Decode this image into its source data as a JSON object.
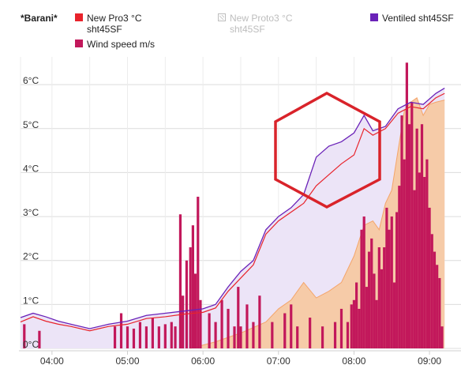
{
  "legend": {
    "title": "*Barani*",
    "items": [
      {
        "label": "New Pro3  °C\nsht45SF",
        "color": "#e8232b",
        "enabled": true
      },
      {
        "label": "New Proto3  °C\nsht45SF",
        "color": "#cccccc",
        "enabled": false
      },
      {
        "label": "Ventiled sht45SF",
        "color": "#6a22b8",
        "enabled": true
      },
      {
        "label": "Wind speed  m/s",
        "color": "#c2185b",
        "enabled": true
      }
    ]
  },
  "colors": {
    "pro3": "#e8232b",
    "ventiled": "#6a22b8",
    "ventiled_fill": "#ece4f7",
    "orange": "#f4a56a",
    "orange_fill": "#f7c9a3",
    "wind": "#c2185b",
    "grid": "#dcdcdc",
    "annotation": "#d9232a"
  },
  "chart_data": {
    "type": "line",
    "x_unit": "time",
    "xlim": [
      "03:35",
      "09:15"
    ],
    "ylim": [
      0,
      6.2
    ],
    "y_ticks": [
      0,
      1,
      2,
      3,
      4,
      5,
      6
    ],
    "y_tick_labels": [
      "0°C",
      "1°C",
      "2°C",
      "3°C",
      "4°C",
      "5°C",
      "6°C"
    ],
    "x_ticks": [
      "04:00",
      "05:00",
      "06:00",
      "07:00",
      "08:00",
      "09:00"
    ],
    "grid": true,
    "series": [
      {
        "name": "Ventiled sht45SF",
        "kind": "area",
        "points": [
          [
            "03:35",
            0.7
          ],
          [
            "03:45",
            0.8
          ],
          [
            "03:55",
            0.72
          ],
          [
            "04:05",
            0.62
          ],
          [
            "04:15",
            0.55
          ],
          [
            "04:30",
            0.45
          ],
          [
            "04:45",
            0.55
          ],
          [
            "05:00",
            0.62
          ],
          [
            "05:15",
            0.75
          ],
          [
            "05:30",
            0.8
          ],
          [
            "05:45",
            0.85
          ],
          [
            "06:00",
            0.9
          ],
          [
            "06:10",
            1.0
          ],
          [
            "06:20",
            1.4
          ],
          [
            "06:30",
            1.75
          ],
          [
            "06:40",
            2.0
          ],
          [
            "06:50",
            2.7
          ],
          [
            "07:00",
            3.0
          ],
          [
            "07:10",
            3.2
          ],
          [
            "07:20",
            3.5
          ],
          [
            "07:30",
            4.35
          ],
          [
            "07:40",
            4.6
          ],
          [
            "07:50",
            4.7
          ],
          [
            "08:00",
            4.9
          ],
          [
            "08:08",
            5.3
          ],
          [
            "08:15",
            4.95
          ],
          [
            "08:25",
            5.05
          ],
          [
            "08:35",
            5.45
          ],
          [
            "08:45",
            5.6
          ],
          [
            "08:55",
            5.55
          ],
          [
            "09:05",
            5.8
          ],
          [
            "09:12",
            5.92
          ]
        ]
      },
      {
        "name": "New Pro3 °C sht45SF",
        "kind": "line",
        "points": [
          [
            "03:35",
            0.6
          ],
          [
            "03:45",
            0.72
          ],
          [
            "03:55",
            0.62
          ],
          [
            "04:05",
            0.55
          ],
          [
            "04:15",
            0.5
          ],
          [
            "04:30",
            0.4
          ],
          [
            "04:45",
            0.5
          ],
          [
            "05:00",
            0.55
          ],
          [
            "05:15",
            0.68
          ],
          [
            "05:30",
            0.72
          ],
          [
            "05:45",
            0.78
          ],
          [
            "06:00",
            0.82
          ],
          [
            "06:10",
            0.92
          ],
          [
            "06:20",
            1.3
          ],
          [
            "06:30",
            1.6
          ],
          [
            "06:40",
            1.9
          ],
          [
            "06:50",
            2.6
          ],
          [
            "07:00",
            2.9
          ],
          [
            "07:10",
            3.1
          ],
          [
            "07:20",
            3.3
          ],
          [
            "07:30",
            3.7
          ],
          [
            "07:40",
            3.95
          ],
          [
            "07:50",
            4.2
          ],
          [
            "08:00",
            4.4
          ],
          [
            "08:08",
            5.0
          ],
          [
            "08:15",
            4.85
          ],
          [
            "08:25",
            5.0
          ],
          [
            "08:35",
            5.35
          ],
          [
            "08:45",
            5.5
          ],
          [
            "08:55",
            5.45
          ],
          [
            "09:05",
            5.7
          ],
          [
            "09:12",
            5.8
          ]
        ]
      },
      {
        "name": "",
        "kind": "area",
        "points": [
          [
            "05:50",
            0.0
          ],
          [
            "06:10",
            0.15
          ],
          [
            "06:30",
            0.35
          ],
          [
            "06:50",
            0.6
          ],
          [
            "07:00",
            0.9
          ],
          [
            "07:10",
            1.1
          ],
          [
            "07:20",
            1.5
          ],
          [
            "07:30",
            1.15
          ],
          [
            "07:40",
            1.3
          ],
          [
            "07:50",
            1.5
          ],
          [
            "08:00",
            2.1
          ],
          [
            "08:08",
            2.8
          ],
          [
            "08:15",
            2.9
          ],
          [
            "08:20",
            2.7
          ],
          [
            "08:25",
            3.3
          ],
          [
            "08:30",
            3.6
          ],
          [
            "08:35",
            4.5
          ],
          [
            "08:40",
            5.4
          ],
          [
            "08:45",
            5.6
          ],
          [
            "08:50",
            5.7
          ],
          [
            "08:55",
            5.3
          ],
          [
            "09:00",
            5.55
          ],
          [
            "09:05",
            5.6
          ],
          [
            "09:12",
            5.65
          ]
        ]
      },
      {
        "name": "Wind speed m/s",
        "kind": "bars",
        "points": [
          [
            "03:38",
            0.55
          ],
          [
            "03:50",
            0.4
          ],
          [
            "04:50",
            0.5
          ],
          [
            "04:55",
            0.8
          ],
          [
            "05:00",
            0.5
          ],
          [
            "05:05",
            0.45
          ],
          [
            "05:10",
            0.6
          ],
          [
            "05:15",
            0.5
          ],
          [
            "05:20",
            0.7
          ],
          [
            "05:25",
            0.5
          ],
          [
            "05:30",
            0.55
          ],
          [
            "05:35",
            0.6
          ],
          [
            "05:38",
            0.5
          ],
          [
            "05:42",
            3.05
          ],
          [
            "05:44",
            1.2
          ],
          [
            "05:47",
            2.0
          ],
          [
            "05:50",
            2.3
          ],
          [
            "05:52",
            2.8
          ],
          [
            "05:54",
            1.7
          ],
          [
            "05:56",
            3.45
          ],
          [
            "05:58",
            1.1
          ],
          [
            "06:05",
            0.8
          ],
          [
            "06:10",
            0.6
          ],
          [
            "06:15",
            1.1
          ],
          [
            "06:20",
            0.9
          ],
          [
            "06:25",
            0.5
          ],
          [
            "06:28",
            1.4
          ],
          [
            "06:30",
            0.5
          ],
          [
            "06:35",
            1.0
          ],
          [
            "06:40",
            0.6
          ],
          [
            "06:45",
            1.2
          ],
          [
            "06:55",
            0.6
          ],
          [
            "07:05",
            0.8
          ],
          [
            "07:10",
            1.0
          ],
          [
            "07:15",
            0.5
          ],
          [
            "07:25",
            0.7
          ],
          [
            "07:35",
            0.5
          ],
          [
            "07:45",
            0.6
          ],
          [
            "07:50",
            0.9
          ],
          [
            "07:55",
            0.6
          ],
          [
            "07:58",
            1.0
          ],
          [
            "08:00",
            1.1
          ],
          [
            "08:02",
            1.5
          ],
          [
            "08:04",
            0.9
          ],
          [
            "08:06",
            2.7
          ],
          [
            "08:08",
            3.0
          ],
          [
            "08:10",
            1.4
          ],
          [
            "08:12",
            2.2
          ],
          [
            "08:14",
            2.5
          ],
          [
            "08:16",
            1.7
          ],
          [
            "08:18",
            1.1
          ],
          [
            "08:20",
            2.3
          ],
          [
            "08:22",
            1.8
          ],
          [
            "08:24",
            2.3
          ],
          [
            "08:26",
            3.2
          ],
          [
            "08:28",
            2.7
          ],
          [
            "08:30",
            3.0
          ],
          [
            "08:32",
            1.5
          ],
          [
            "08:34",
            3.1
          ],
          [
            "08:36",
            3.7
          ],
          [
            "08:38",
            5.3
          ],
          [
            "08:40",
            4.3
          ],
          [
            "08:42",
            6.5
          ],
          [
            "08:44",
            5.1
          ],
          [
            "08:46",
            5.6
          ],
          [
            "08:48",
            3.6
          ],
          [
            "08:50",
            5.0
          ],
          [
            "08:52",
            4.0
          ],
          [
            "08:54",
            5.1
          ],
          [
            "08:56",
            3.9
          ],
          [
            "08:58",
            4.3
          ],
          [
            "09:00",
            3.2
          ],
          [
            "09:02",
            2.6
          ],
          [
            "09:04",
            2.2
          ],
          [
            "09:06",
            1.9
          ],
          [
            "09:08",
            1.6
          ],
          [
            "09:10",
            0.5
          ]
        ]
      }
    ],
    "annotation": {
      "shape": "hexagon",
      "label": ""
    }
  }
}
